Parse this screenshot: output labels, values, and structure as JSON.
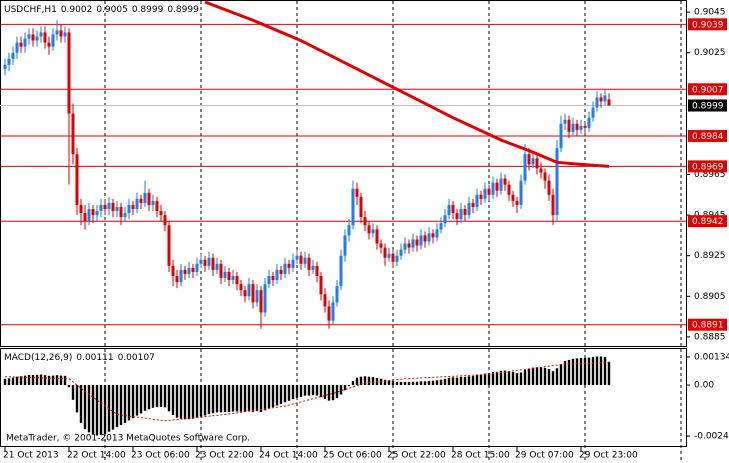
{
  "chart_data": [
    {
      "type": "candlestick",
      "title": "USDCHF,H1",
      "ohlc": [
        [
          0.9017,
          0.9022,
          0.9014,
          0.9019
        ],
        [
          0.9019,
          0.9025,
          0.9016,
          0.9022
        ],
        [
          0.9022,
          0.9028,
          0.9019,
          0.9025
        ],
        [
          0.9025,
          0.9033,
          0.9022,
          0.903
        ],
        [
          0.903,
          0.9033,
          0.9025,
          0.9028
        ],
        [
          0.9028,
          0.9035,
          0.9025,
          0.9032
        ],
        [
          0.9032,
          0.9037,
          0.9029,
          0.9034
        ],
        [
          0.9034,
          0.9037,
          0.9028,
          0.9031
        ],
        [
          0.9031,
          0.9036,
          0.9028,
          0.9033
        ],
        [
          0.9033,
          0.9038,
          0.903,
          0.9035
        ],
        [
          0.9035,
          0.9038,
          0.9027,
          0.903
        ],
        [
          0.903,
          0.9033,
          0.9024,
          0.9028
        ],
        [
          0.9028,
          0.9037,
          0.9026,
          0.9034
        ],
        [
          0.9034,
          0.9041,
          0.9031,
          0.9036
        ],
        [
          0.9036,
          0.9039,
          0.903,
          0.9033
        ],
        [
          0.9033,
          0.9038,
          0.903,
          0.9035
        ],
        [
          0.9035,
          0.9037,
          0.896,
          0.8995
        ],
        [
          0.8995,
          0.9,
          0.897,
          0.8975
        ],
        [
          0.8975,
          0.8978,
          0.8945,
          0.895
        ],
        [
          0.895,
          0.8953,
          0.894,
          0.8946
        ],
        [
          0.8946,
          0.895,
          0.8938,
          0.8942
        ],
        [
          0.8942,
          0.8951,
          0.894,
          0.8948
        ],
        [
          0.8948,
          0.895,
          0.8941,
          0.8945
        ],
        [
          0.8945,
          0.895,
          0.8942,
          0.8947
        ],
        [
          0.8947,
          0.8953,
          0.8944,
          0.895
        ],
        [
          0.895,
          0.8953,
          0.8945,
          0.8948
        ],
        [
          0.8948,
          0.8954,
          0.8945,
          0.8951
        ],
        [
          0.8951,
          0.8953,
          0.8944,
          0.8947
        ],
        [
          0.8947,
          0.8952,
          0.8944,
          0.8949
        ],
        [
          0.8949,
          0.8951,
          0.894,
          0.8944
        ],
        [
          0.8944,
          0.8949,
          0.8942,
          0.8946
        ],
        [
          0.8946,
          0.8953,
          0.8943,
          0.895
        ],
        [
          0.895,
          0.8952,
          0.8945,
          0.8948
        ],
        [
          0.8948,
          0.8956,
          0.8946,
          0.8953
        ],
        [
          0.8953,
          0.8955,
          0.8948,
          0.8951
        ],
        [
          0.8951,
          0.8962,
          0.8949,
          0.8956
        ],
        [
          0.8956,
          0.8958,
          0.8947,
          0.895
        ],
        [
          0.895,
          0.8955,
          0.8947,
          0.8952
        ],
        [
          0.8952,
          0.8954,
          0.8944,
          0.8947
        ],
        [
          0.8947,
          0.895,
          0.8942,
          0.8945
        ],
        [
          0.8945,
          0.8947,
          0.8937,
          0.894
        ],
        [
          0.894,
          0.8942,
          0.8917,
          0.892
        ],
        [
          0.892,
          0.8923,
          0.891,
          0.8915
        ],
        [
          0.8915,
          0.8918,
          0.8909,
          0.8912
        ],
        [
          0.8912,
          0.8921,
          0.891,
          0.8918
        ],
        [
          0.8918,
          0.892,
          0.8913,
          0.8916
        ],
        [
          0.8916,
          0.8922,
          0.8914,
          0.8919
        ],
        [
          0.8919,
          0.8921,
          0.8914,
          0.8917
        ],
        [
          0.8917,
          0.8924,
          0.8915,
          0.8921
        ],
        [
          0.8921,
          0.8926,
          0.8919,
          0.8923
        ],
        [
          0.8923,
          0.8925,
          0.8917,
          0.892
        ],
        [
          0.892,
          0.8927,
          0.8918,
          0.8924
        ],
        [
          0.8924,
          0.8926,
          0.8915,
          0.8918
        ],
        [
          0.8918,
          0.8924,
          0.8916,
          0.8921
        ],
        [
          0.8921,
          0.8923,
          0.8911,
          0.8914
        ],
        [
          0.8914,
          0.892,
          0.8912,
          0.8917
        ],
        [
          0.8917,
          0.8919,
          0.891,
          0.8913
        ],
        [
          0.8913,
          0.8918,
          0.8911,
          0.8915
        ],
        [
          0.8915,
          0.8917,
          0.8908,
          0.8911
        ],
        [
          0.8911,
          0.8913,
          0.8905,
          0.8908
        ],
        [
          0.8908,
          0.891,
          0.8902,
          0.8905
        ],
        [
          0.8905,
          0.8914,
          0.8903,
          0.8911
        ],
        [
          0.8911,
          0.8913,
          0.8899,
          0.8902
        ],
        [
          0.8902,
          0.8911,
          0.89,
          0.8908
        ],
        [
          0.8908,
          0.891,
          0.8889,
          0.8897
        ],
        [
          0.8897,
          0.8914,
          0.8895,
          0.8911
        ],
        [
          0.8911,
          0.8918,
          0.8909,
          0.8915
        ],
        [
          0.8915,
          0.8917,
          0.891,
          0.8913
        ],
        [
          0.8913,
          0.8921,
          0.8911,
          0.8918
        ],
        [
          0.8918,
          0.892,
          0.8913,
          0.8916
        ],
        [
          0.8916,
          0.8924,
          0.8914,
          0.8921
        ],
        [
          0.8921,
          0.8923,
          0.8916,
          0.8919
        ],
        [
          0.8919,
          0.8926,
          0.8917,
          0.8923
        ],
        [
          0.8923,
          0.8928,
          0.8921,
          0.8925
        ],
        [
          0.8925,
          0.8927,
          0.8918,
          0.8921
        ],
        [
          0.8921,
          0.8927,
          0.8919,
          0.8924
        ],
        [
          0.8924,
          0.8926,
          0.8915,
          0.8918
        ],
        [
          0.8918,
          0.8923,
          0.8916,
          0.892
        ],
        [
          0.892,
          0.8922,
          0.8912,
          0.8915
        ],
        [
          0.8915,
          0.8917,
          0.8903,
          0.8906
        ],
        [
          0.8906,
          0.8909,
          0.8897,
          0.89
        ],
        [
          0.89,
          0.8903,
          0.8889,
          0.8893
        ],
        [
          0.8893,
          0.8905,
          0.8891,
          0.8902
        ],
        [
          0.8902,
          0.8913,
          0.89,
          0.891
        ],
        [
          0.891,
          0.8928,
          0.8908,
          0.8925
        ],
        [
          0.8925,
          0.8938,
          0.8922,
          0.8935
        ],
        [
          0.8935,
          0.8943,
          0.8932,
          0.894
        ],
        [
          0.894,
          0.8962,
          0.8938,
          0.8958
        ],
        [
          0.8958,
          0.8961,
          0.895,
          0.8954
        ],
        [
          0.8954,
          0.8956,
          0.8941,
          0.8944
        ],
        [
          0.8944,
          0.8947,
          0.8937,
          0.894
        ],
        [
          0.894,
          0.8942,
          0.8933,
          0.8936
        ],
        [
          0.8936,
          0.8941,
          0.8934,
          0.8938
        ],
        [
          0.8938,
          0.894,
          0.8928,
          0.8931
        ],
        [
          0.8931,
          0.8933,
          0.8926,
          0.8929
        ],
        [
          0.8929,
          0.8931,
          0.892,
          0.8924
        ],
        [
          0.8924,
          0.8929,
          0.8922,
          0.8926
        ],
        [
          0.8926,
          0.8928,
          0.8919,
          0.8922
        ],
        [
          0.8922,
          0.8928,
          0.892,
          0.8925
        ],
        [
          0.8925,
          0.8931,
          0.8923,
          0.8928
        ],
        [
          0.8928,
          0.8934,
          0.8926,
          0.8931
        ],
        [
          0.8931,
          0.8933,
          0.8926,
          0.8929
        ],
        [
          0.8929,
          0.8936,
          0.8927,
          0.8933
        ],
        [
          0.8933,
          0.8935,
          0.8927,
          0.893
        ],
        [
          0.893,
          0.8938,
          0.8928,
          0.8935
        ],
        [
          0.8935,
          0.8937,
          0.8929,
          0.8932
        ],
        [
          0.8932,
          0.8939,
          0.893,
          0.8936
        ],
        [
          0.8936,
          0.8938,
          0.8931,
          0.8934
        ],
        [
          0.8934,
          0.8941,
          0.8932,
          0.8938
        ],
        [
          0.8938,
          0.8944,
          0.8936,
          0.8941
        ],
        [
          0.8941,
          0.8948,
          0.8939,
          0.8945
        ],
        [
          0.8945,
          0.8953,
          0.8943,
          0.895
        ],
        [
          0.895,
          0.8952,
          0.8943,
          0.8946
        ],
        [
          0.8946,
          0.8948,
          0.894,
          0.8943
        ],
        [
          0.8943,
          0.8951,
          0.8941,
          0.8948
        ],
        [
          0.8948,
          0.895,
          0.8942,
          0.8945
        ],
        [
          0.8945,
          0.8954,
          0.8943,
          0.8951
        ],
        [
          0.8951,
          0.8953,
          0.8946,
          0.8949
        ],
        [
          0.8949,
          0.8958,
          0.8947,
          0.8955
        ],
        [
          0.8955,
          0.8957,
          0.895,
          0.8953
        ],
        [
          0.8953,
          0.8961,
          0.8951,
          0.8958
        ],
        [
          0.8958,
          0.896,
          0.8952,
          0.8955
        ],
        [
          0.8955,
          0.8964,
          0.8953,
          0.8961
        ],
        [
          0.8961,
          0.8963,
          0.8954,
          0.8957
        ],
        [
          0.8957,
          0.8966,
          0.8955,
          0.8963
        ],
        [
          0.8963,
          0.8965,
          0.8957,
          0.896
        ],
        [
          0.896,
          0.8962,
          0.8952,
          0.8955
        ],
        [
          0.8955,
          0.8957,
          0.8949,
          0.8952
        ],
        [
          0.8952,
          0.8954,
          0.8946,
          0.895
        ],
        [
          0.895,
          0.8965,
          0.8948,
          0.8962
        ],
        [
          0.8962,
          0.898,
          0.896,
          0.8975
        ],
        [
          0.8975,
          0.8978,
          0.8967,
          0.897
        ],
        [
          0.897,
          0.8976,
          0.8968,
          0.8973
        ],
        [
          0.8973,
          0.8975,
          0.8965,
          0.8968
        ],
        [
          0.8968,
          0.8971,
          0.8963,
          0.8966
        ],
        [
          0.8966,
          0.8968,
          0.8958,
          0.8962
        ],
        [
          0.8962,
          0.8965,
          0.8952,
          0.8955
        ],
        [
          0.8955,
          0.8958,
          0.894,
          0.8945
        ],
        [
          0.8945,
          0.8982,
          0.8942,
          0.8978
        ],
        [
          0.8978,
          0.8994,
          0.8976,
          0.899
        ],
        [
          0.899,
          0.8995,
          0.8987,
          0.8992
        ],
        [
          0.8992,
          0.8994,
          0.8983,
          0.8986
        ],
        [
          0.8986,
          0.8993,
          0.8984,
          0.899
        ],
        [
          0.899,
          0.8992,
          0.8984,
          0.8987
        ],
        [
          0.8987,
          0.8992,
          0.8985,
          0.8989
        ],
        [
          0.8989,
          0.8991,
          0.8985,
          0.8988
        ],
        [
          0.8988,
          0.8996,
          0.8986,
          0.8993
        ],
        [
          0.8993,
          0.9001,
          0.8991,
          0.8998
        ],
        [
          0.8998,
          0.9006,
          0.8996,
          0.9003
        ],
        [
          0.9003,
          0.9005,
          0.8998,
          0.9001
        ],
        [
          0.9001,
          0.9007,
          0.8999,
          0.9004
        ],
        [
          0.9002,
          0.9005,
          0.8999,
          0.8999
        ]
      ],
      "up_color": "#1e7fe8",
      "down_color": "#e00000",
      "ma": {
        "x": [
          50,
          62,
          74,
          87,
          99,
          112,
          124,
          132,
          138,
          144,
          151
        ],
        "values": [
          0.905,
          0.9041,
          0.9031,
          0.9018,
          0.9006,
          0.8993,
          0.8982,
          0.8976,
          0.8971,
          0.897,
          0.8969
        ],
        "color": "#e00000"
      },
      "levels": [
        0.9039,
        0.9007,
        0.8984,
        0.8969,
        0.8942,
        0.8891
      ],
      "level_color": "#e00000",
      "ylim": [
        0.8881,
        0.905
      ],
      "yticks": [
        0.9045,
        0.9025,
        0.8965,
        0.8945,
        0.8925,
        0.8905,
        0.8885
      ],
      "xticks": [
        {
          "value": 0,
          "label": "21 Oct 2013"
        },
        {
          "value": 16,
          "label": "22 Oct 14:00"
        },
        {
          "value": 32,
          "label": "23 Oct 06:00"
        },
        {
          "value": 48,
          "label": "23 Oct 22:00"
        },
        {
          "value": 64,
          "label": "24 Oct 14:00"
        },
        {
          "value": 80,
          "label": "25 Oct 06:00"
        },
        {
          "value": 96,
          "label": "25 Oct 22:00"
        },
        {
          "value": 112,
          "label": "28 Oct 15:00"
        },
        {
          "value": 128,
          "label": "29 Oct 07:00"
        },
        {
          "value": 144,
          "label": "29 Oct 23:00"
        }
      ],
      "xgrid": [
        25,
        49,
        73,
        97,
        121,
        145,
        169
      ],
      "grid": true,
      "copyright": "MetaTrader, © 2001-2013 MetaQuotes Software Corp."
    },
    {
      "type": "bar",
      "title": "MACD(12,26,9)",
      "color": "#000000",
      "values": [
        0.0003,
        0.00032,
        0.00035,
        0.0004,
        0.00042,
        0.00045,
        0.00048,
        0.00048,
        0.00049,
        0.0005,
        0.00047,
        0.00044,
        0.00045,
        0.00047,
        0.00045,
        0.00044,
        -0.0001,
        -0.0007,
        -0.0013,
        -0.0018,
        -0.0021,
        -0.00225,
        -0.00235,
        -0.0024,
        -0.00238,
        -0.00232,
        -0.00222,
        -0.00212,
        -0.002,
        -0.0019,
        -0.0018,
        -0.00168,
        -0.00158,
        -0.00145,
        -0.00135,
        -0.00122,
        -0.00115,
        -0.00108,
        -0.00105,
        -0.00104,
        -0.00106,
        -0.00125,
        -0.00142,
        -0.00155,
        -0.0016,
        -0.00163,
        -0.00162,
        -0.0016,
        -0.00155,
        -0.0015,
        -0.00145,
        -0.00138,
        -0.00134,
        -0.0013,
        -0.0013,
        -0.00128,
        -0.00128,
        -0.00126,
        -0.00126,
        -0.00127,
        -0.00128,
        -0.00125,
        -0.00127,
        -0.00124,
        -0.00128,
        -0.0012,
        -0.00112,
        -0.00105,
        -0.00097,
        -0.0009,
        -0.00082,
        -0.00075,
        -0.00067,
        -0.0006,
        -0.00056,
        -0.0005,
        -0.0005,
        -0.00048,
        -0.0005,
        -0.00058,
        -0.00066,
        -0.00074,
        -0.00072,
        -0.00062,
        -0.00045,
        -0.00025,
        -5e-05,
        0.0002,
        0.00035,
        0.0004,
        0.00042,
        0.0004,
        0.00038,
        0.00034,
        0.0003,
        0.00025,
        0.00022,
        0.00018,
        0.00016,
        0.00015,
        0.00015,
        0.00015,
        0.00016,
        0.00016,
        0.00018,
        0.00018,
        0.0002,
        0.00021,
        0.00023,
        0.00026,
        0.0003,
        0.00035,
        0.00037,
        0.00036,
        0.00039,
        0.00039,
        0.00042,
        0.00043,
        0.00048,
        0.0005,
        0.00055,
        0.00057,
        0.00062,
        0.00063,
        0.00068,
        0.00069,
        0.00067,
        0.00062,
        0.00057,
        0.0006,
        0.00072,
        0.00078,
        0.00083,
        0.00085,
        0.00085,
        0.00082,
        0.00076,
        0.00066,
        0.0008,
        0.001,
        0.00115,
        0.0012,
        0.00125,
        0.00127,
        0.00129,
        0.0013,
        0.00131,
        0.00133,
        0.00136,
        0.00136,
        0.00134,
        0.00111
      ],
      "signal": {
        "x": [
          0,
          16,
          20,
          28,
          40,
          55,
          70,
          82,
          90,
          100,
          120,
          140,
          151
        ],
        "values": [
          0.0004,
          0.0003,
          -0.0003,
          -0.0014,
          -0.0017,
          -0.0014,
          -0.001,
          -0.0004,
          0.0001,
          0.0003,
          0.0005,
          0.001,
          0.00107
        ],
        "color": "#e00000"
      },
      "ylim": [
        -0.0029,
        0.00167
      ],
      "yticks": [
        0.00134,
        {
          "value": 0,
          "label": "0.00"
        },
        -0.00243
      ]
    }
  ]
}
